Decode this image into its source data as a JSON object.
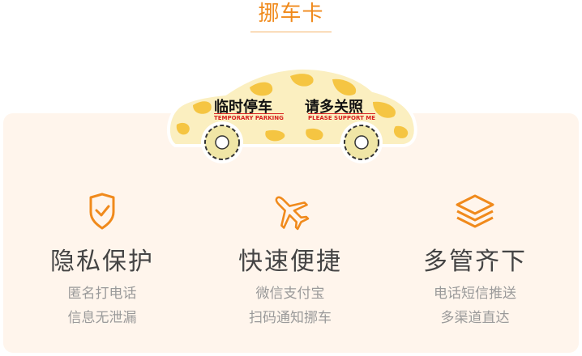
{
  "header": {
    "title": "挪车卡"
  },
  "car_sign": {
    "text_left_cn": "临时停车",
    "text_right_cn": "请多关照",
    "text_left_en": "TEMPORARY PARKING",
    "text_right_en": "PLEASE SUPPORT ME"
  },
  "colors": {
    "accent": "#f08a1c",
    "panel_bg": "#fff5ec",
    "car_yellow": "#f5c542",
    "car_cream": "#fbefc0"
  },
  "features": [
    {
      "icon": "shield-check-icon",
      "title": "隐私保护",
      "line1": "匿名打电话",
      "line2": "信息无泄漏"
    },
    {
      "icon": "airplane-icon",
      "title": "快速便捷",
      "line1": "微信支付宝",
      "line2": "扫码通知挪车"
    },
    {
      "icon": "layers-icon",
      "title": "多管齐下",
      "line1": "电话短信推送",
      "line2": "多渠道直达"
    }
  ]
}
